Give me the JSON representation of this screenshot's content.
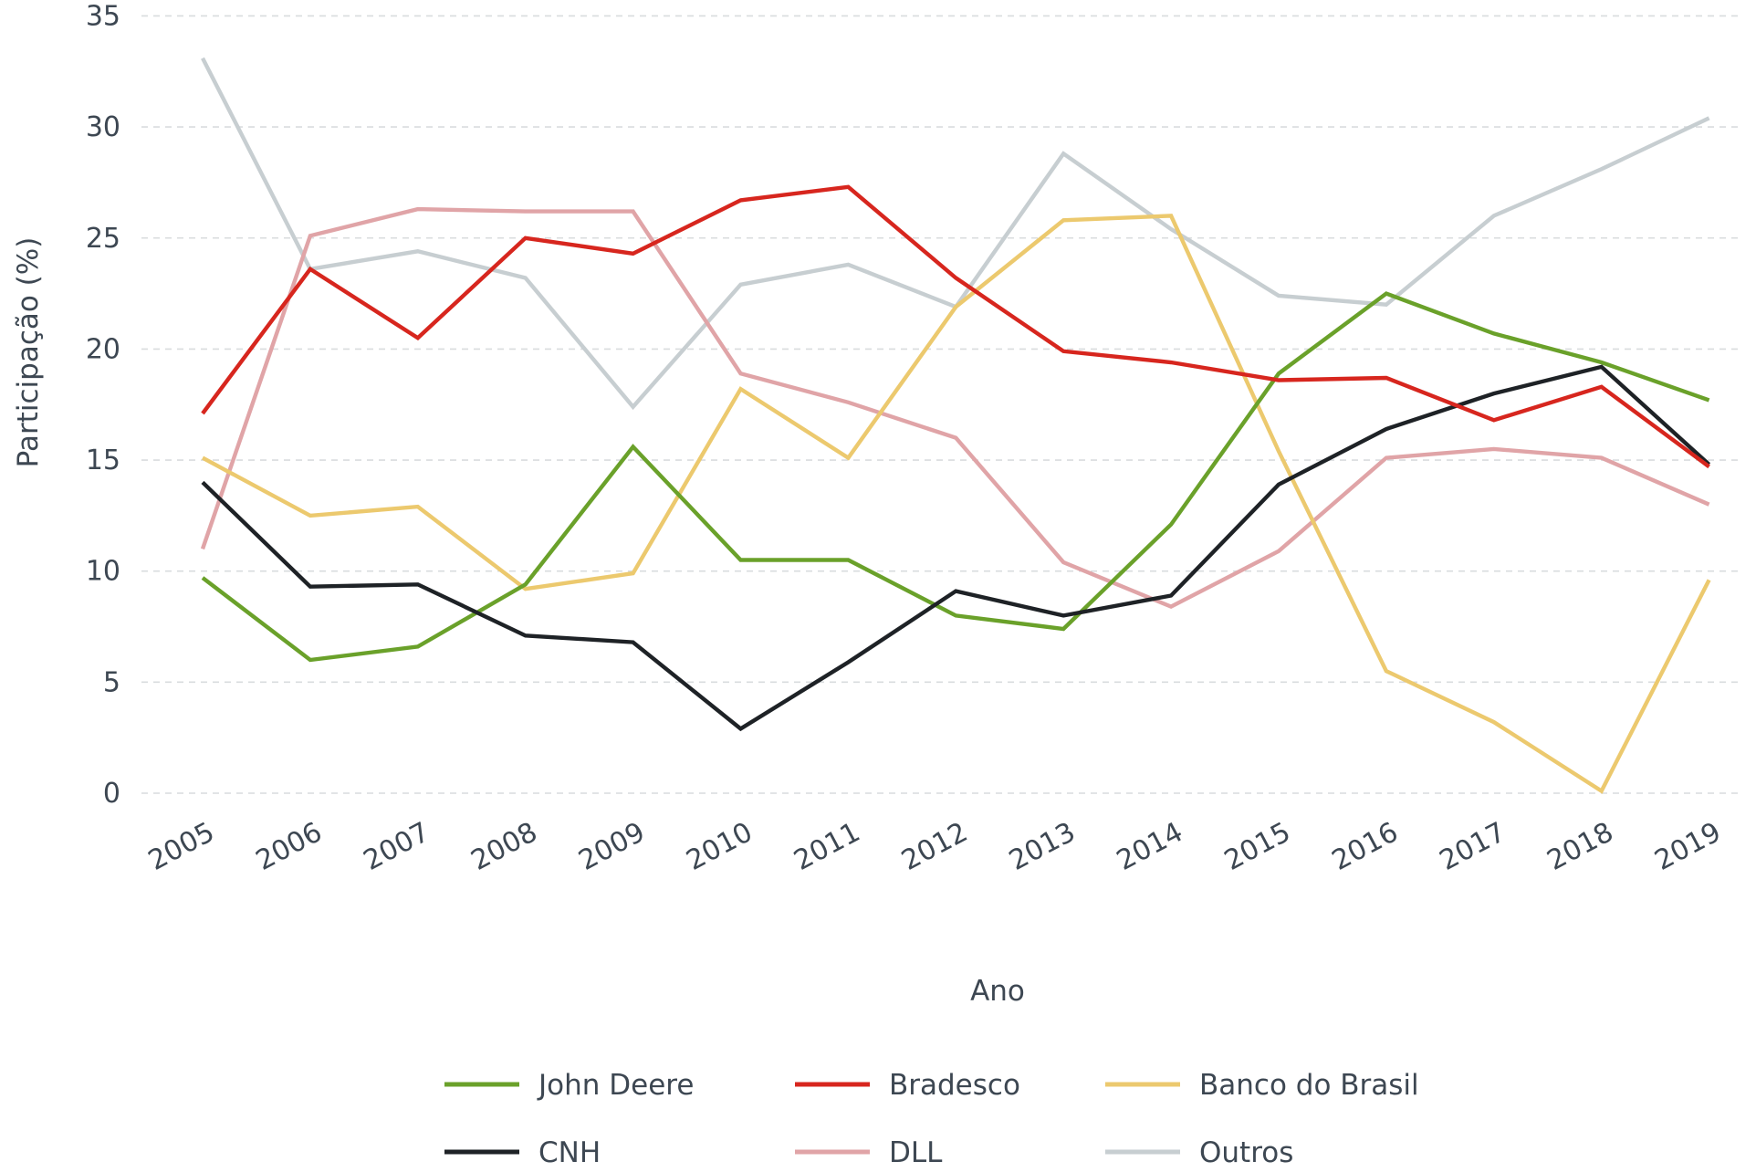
{
  "chart_data": {
    "type": "line",
    "title": "",
    "xlabel": "Ano",
    "ylabel": "Participação (%)",
    "ylim": [
      0,
      35
    ],
    "yticks": [
      0,
      5,
      10,
      15,
      20,
      25,
      30,
      35
    ],
    "grid": "horizontal-dashed",
    "legend_position": "bottom",
    "categories": [
      "2005",
      "2006",
      "2007",
      "2008",
      "2009",
      "2010",
      "2011",
      "2012",
      "2013",
      "2014",
      "2015",
      "2016",
      "2017",
      "2018",
      "2019"
    ],
    "series": [
      {
        "name": "John Deere",
        "color": "#6aa12a",
        "values": [
          9.7,
          6.0,
          6.6,
          9.4,
          15.6,
          10.5,
          10.5,
          8.0,
          7.4,
          12.1,
          18.9,
          22.5,
          20.7,
          19.4,
          17.7
        ]
      },
      {
        "name": "Bradesco",
        "color": "#d7261e",
        "values": [
          17.1,
          23.6,
          20.5,
          25.0,
          24.3,
          26.7,
          27.3,
          23.2,
          19.9,
          19.4,
          18.6,
          18.7,
          16.8,
          18.3,
          14.7
        ]
      },
      {
        "name": "Banco do Brasil",
        "color": "#ecc96e",
        "values": [
          15.1,
          12.5,
          12.9,
          9.2,
          9.9,
          18.2,
          15.1,
          21.9,
          25.8,
          26.0,
          15.4,
          5.5,
          3.2,
          0.1,
          9.6
        ]
      },
      {
        "name": "CNH",
        "color": "#1e2226",
        "values": [
          14.0,
          9.3,
          9.4,
          7.1,
          6.8,
          2.9,
          5.9,
          9.1,
          8.0,
          8.9,
          13.9,
          16.4,
          18.0,
          19.2,
          14.8
        ]
      },
      {
        "name": "DLL",
        "color": "#e0a4a7",
        "values": [
          11.0,
          25.1,
          26.3,
          26.2,
          26.2,
          18.9,
          17.6,
          16.0,
          10.4,
          8.4,
          10.9,
          15.1,
          15.5,
          15.1,
          13.0
        ]
      },
      {
        "name": "Outros",
        "color": "#c7ced1",
        "values": [
          33.1,
          23.6,
          24.4,
          23.2,
          17.4,
          22.9,
          23.8,
          21.9,
          28.8,
          25.4,
          22.4,
          22.0,
          26.0,
          28.1,
          30.4
        ]
      }
    ],
    "draw_order": [
      "Outros",
      "DLL",
      "Banco do Brasil",
      "John Deere",
      "CNH",
      "Bradesco"
    ]
  }
}
